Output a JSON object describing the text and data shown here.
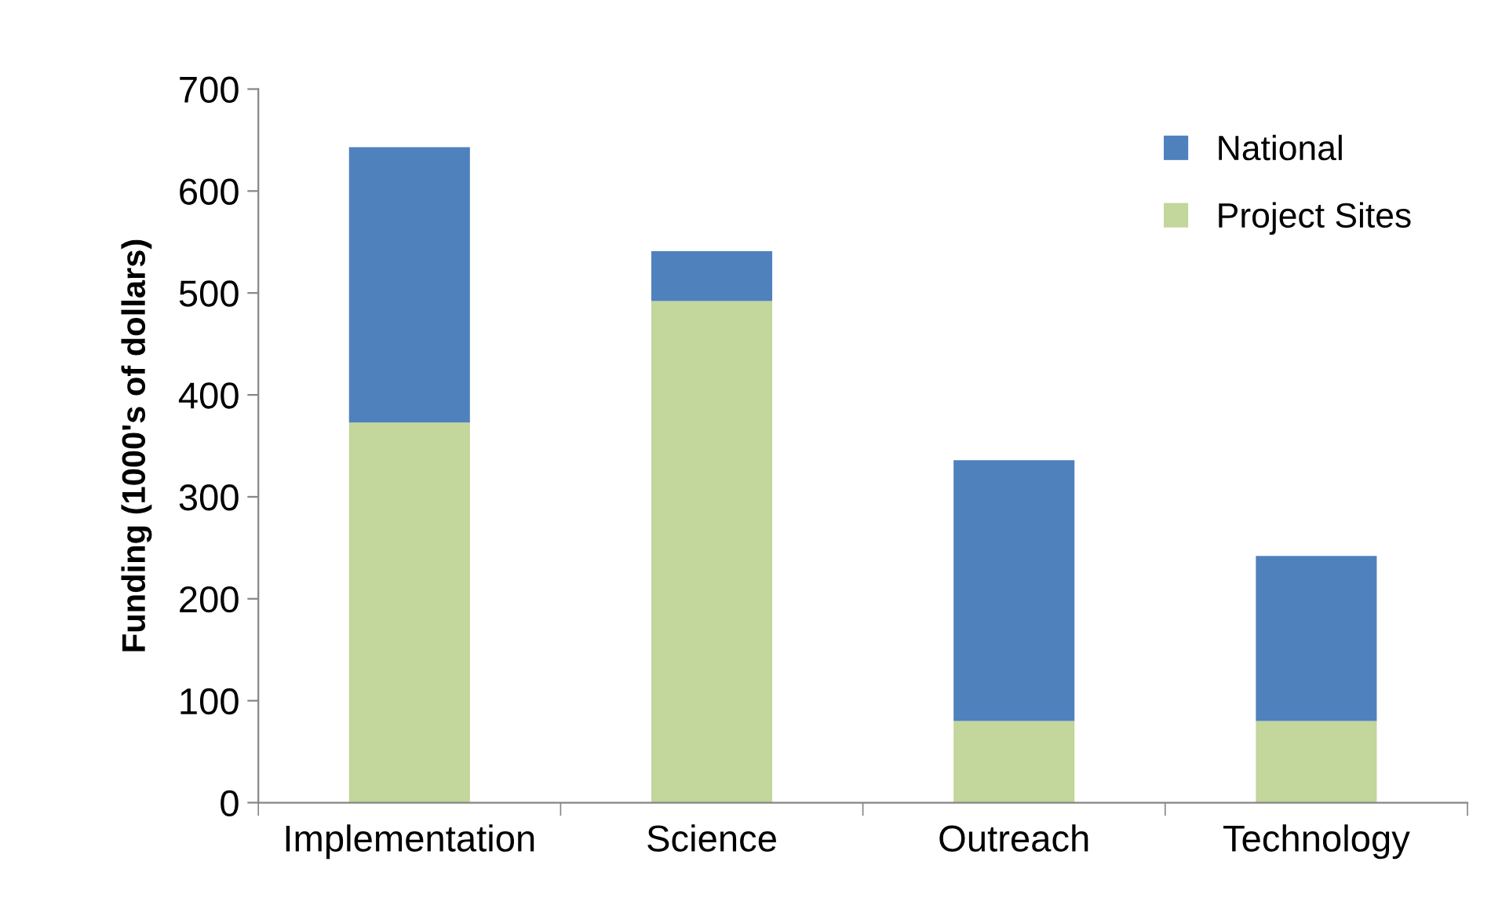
{
  "chart_data": {
    "type": "bar",
    "stacked": true,
    "ylabel": "Funding (1000's of dollars)",
    "categories": [
      "Implementation",
      "Science",
      "Outreach",
      "Technology"
    ],
    "series": [
      {
        "name": "Project Sites",
        "color": "#c3d69b",
        "values": [
          373,
          492,
          80,
          80
        ]
      },
      {
        "name": "National",
        "color": "#4f81bd",
        "values": [
          270,
          49,
          256,
          162
        ]
      }
    ],
    "ylim": [
      0,
      700
    ],
    "yticks": [
      0,
      100,
      200,
      300,
      400,
      500,
      600,
      700
    ],
    "grid": false,
    "legend": "top right"
  }
}
